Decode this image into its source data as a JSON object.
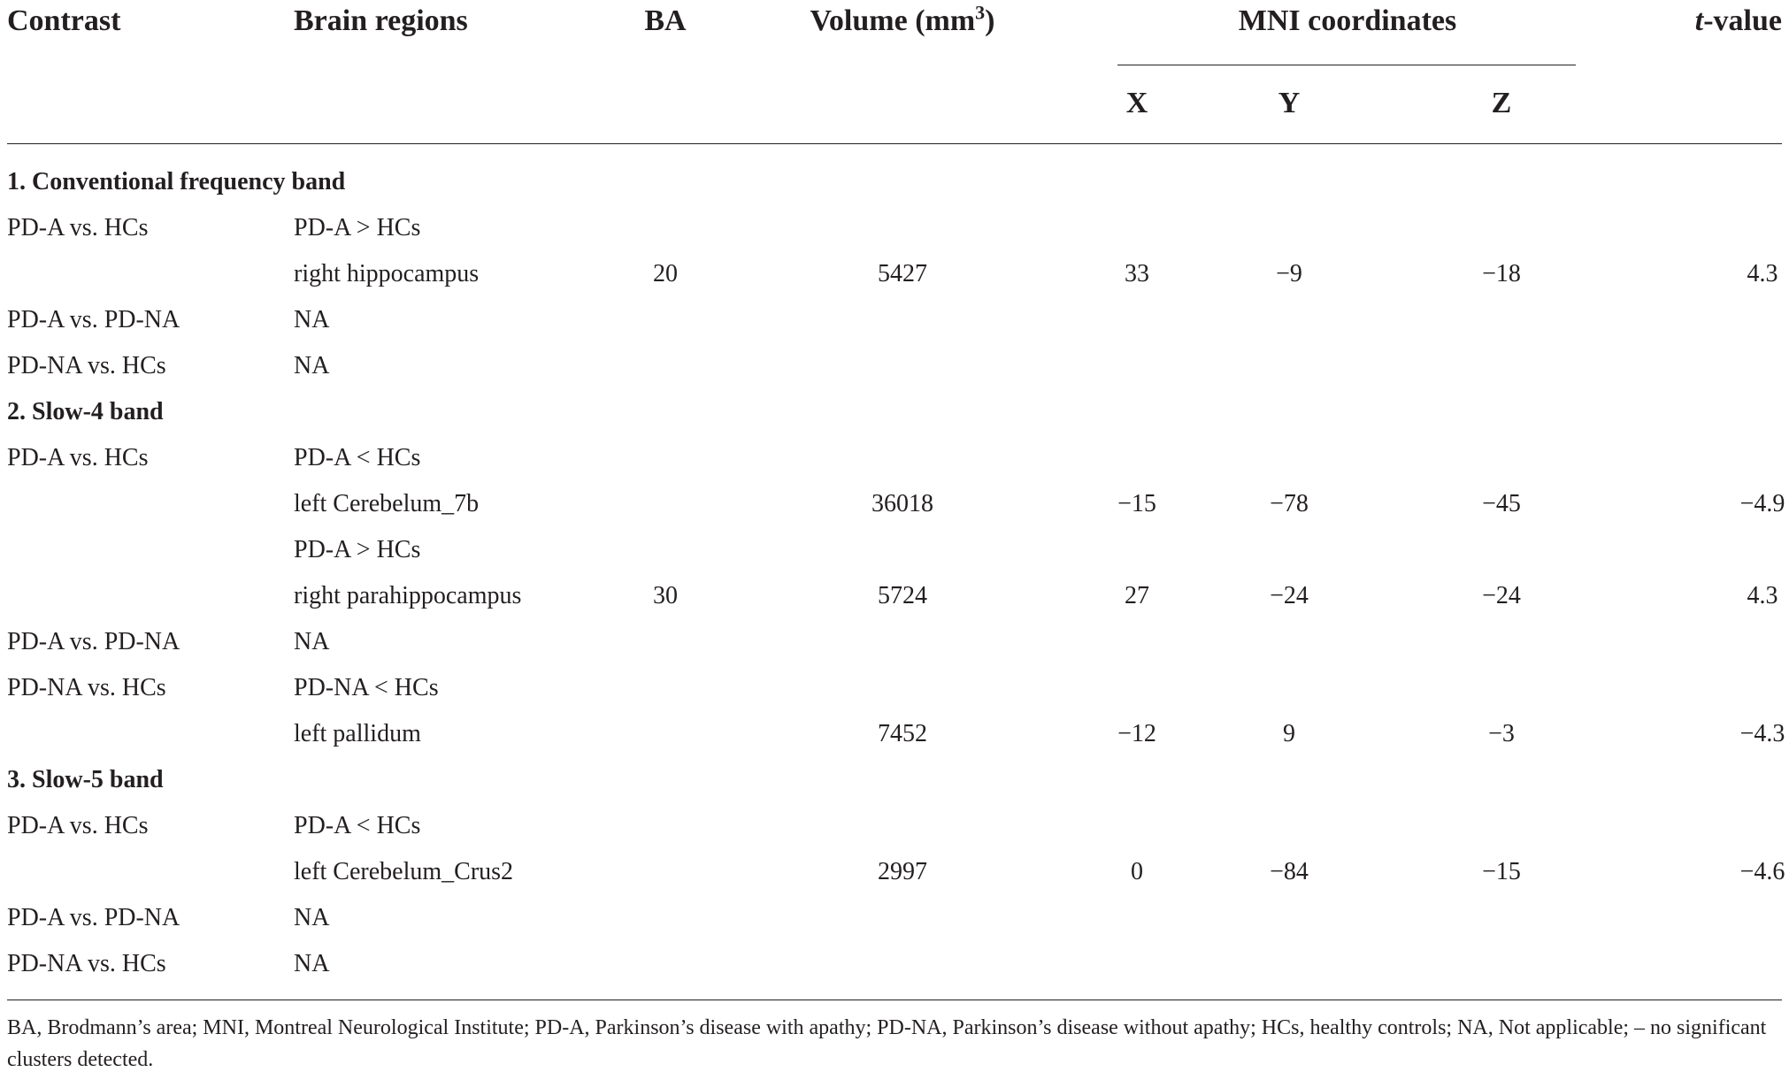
{
  "header": {
    "contrast": "Contrast",
    "brain_regions": "Brain regions",
    "ba": "BA",
    "volume_label": "Volume (mm",
    "volume_sup": "3",
    "volume_close": ")",
    "mni": "MNI coordinates",
    "t_italic": "t",
    "t_rest": "-value",
    "x": "X",
    "y": "Y",
    "z": "Z"
  },
  "rows": [
    {
      "section": "1. Conventional frequency band"
    },
    {
      "contrast": "PD-A vs. HCs",
      "region": "PD-A > HCs"
    },
    {
      "region": "right hippocampus",
      "ba": "20",
      "volume": "5427",
      "x": "33",
      "y": "−9",
      "z": "−18",
      "t": "4.3"
    },
    {
      "contrast": "PD-A vs. PD-NA",
      "region": "NA"
    },
    {
      "contrast": "PD-NA vs. HCs",
      "region": "NA"
    },
    {
      "section": "2. Slow-4 band"
    },
    {
      "contrast": "PD-A vs. HCs",
      "region": "PD-A < HCs"
    },
    {
      "region": "left Cerebelum_7b",
      "volume": "36018",
      "x": "−15",
      "y": "−78",
      "z": "−45",
      "t": "−4.9"
    },
    {
      "region": "PD-A > HCs"
    },
    {
      "region": "right parahippocampus",
      "ba": "30",
      "volume": "5724",
      "x": "27",
      "y": "−24",
      "z": "−24",
      "t": "4.3"
    },
    {
      "contrast": "PD-A vs. PD-NA",
      "region": "NA"
    },
    {
      "contrast": "PD-NA vs. HCs",
      "region": "PD-NA < HCs"
    },
    {
      "region": "left pallidum",
      "volume": "7452",
      "x": "−12",
      "y": "9",
      "z": "−3",
      "t": "−4.3"
    },
    {
      "section": "3. Slow-5 band"
    },
    {
      "contrast": "PD-A vs. HCs",
      "region": "PD-A < HCs"
    },
    {
      "region": "left Cerebelum_Crus2",
      "volume": "2997",
      "x": "0",
      "y": "−84",
      "z": "−15",
      "t": "−4.6"
    },
    {
      "contrast": "PD-A vs. PD-NA",
      "region": "NA"
    },
    {
      "contrast": "PD-NA vs. HCs",
      "region": "NA"
    }
  ],
  "footnote": "BA, Brodmann’s area; MNI, Montreal Neurological Institute; PD-A, Parkinson’s disease with apathy; PD-NA, Parkinson’s disease without apathy; HCs, healthy controls; NA, Not applicable; – no significant clusters detected."
}
